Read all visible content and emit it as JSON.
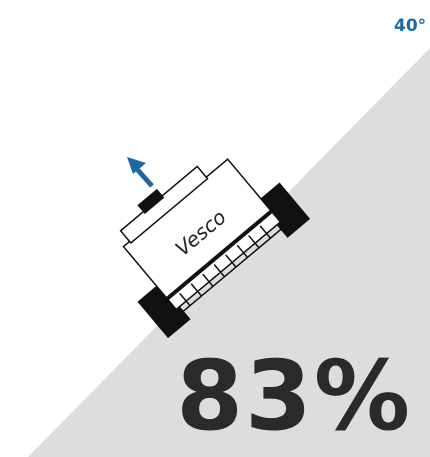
{
  "angle_label": "40°",
  "percentage": "83%",
  "logo": "Vesco"
}
